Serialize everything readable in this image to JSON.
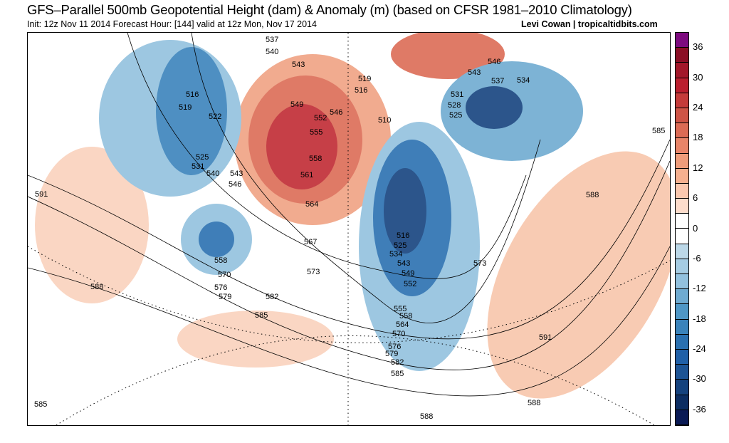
{
  "header": {
    "title": "GFS–Parallel 500mb Geopotential Height (dam) & Anomaly (m) (based on CFSR 1981–2010 Climatology)",
    "subtitle": "Init: 12z Nov 11 2014 Forecast Hour: [144] valid at 12z Mon, Nov 17 2014",
    "credit": "Levi Cowan | tropicaltidbits.com"
  },
  "colorbar": {
    "ticks": [
      "36",
      "30",
      "24",
      "18",
      "12",
      "6",
      "0",
      "-6",
      "-12",
      "-18",
      "-24",
      "-30",
      "-36"
    ],
    "colors": [
      "#7d0a7f",
      "#8b0e25",
      "#a3172a",
      "#bb1e2e",
      "#c53b3a",
      "#cf5446",
      "#dc6b55",
      "#e88468",
      "#ef9c7a",
      "#f6b08f",
      "#fac8af",
      "#fddccb",
      "#ffffff",
      "#ffffff",
      "#bcd8e8",
      "#a5cce3",
      "#92c1de",
      "#6fabd1",
      "#4f97c6",
      "#3a83bb",
      "#2a70b0",
      "#2060a8",
      "#1d5495",
      "#15427e",
      "#0c2d62",
      "#0a1a55"
    ]
  },
  "map": {
    "labels": [
      "537",
      "540",
      "543",
      "516",
      "519",
      "522",
      "549",
      "546",
      "552",
      "555",
      "525",
      "531",
      "540",
      "543",
      "546",
      "558",
      "561",
      "591",
      "564",
      "558",
      "570",
      "567",
      "573",
      "576",
      "579",
      "582",
      "585",
      "588",
      "555",
      "558",
      "564",
      "570",
      "576",
      "579",
      "582",
      "585",
      "588",
      "588",
      "585",
      "591",
      "573",
      "552",
      "549",
      "543",
      "534",
      "525",
      "516",
      "510",
      "546",
      "543",
      "537",
      "534",
      "531",
      "528",
      "525",
      "585",
      "588",
      "516",
      "519"
    ]
  }
}
